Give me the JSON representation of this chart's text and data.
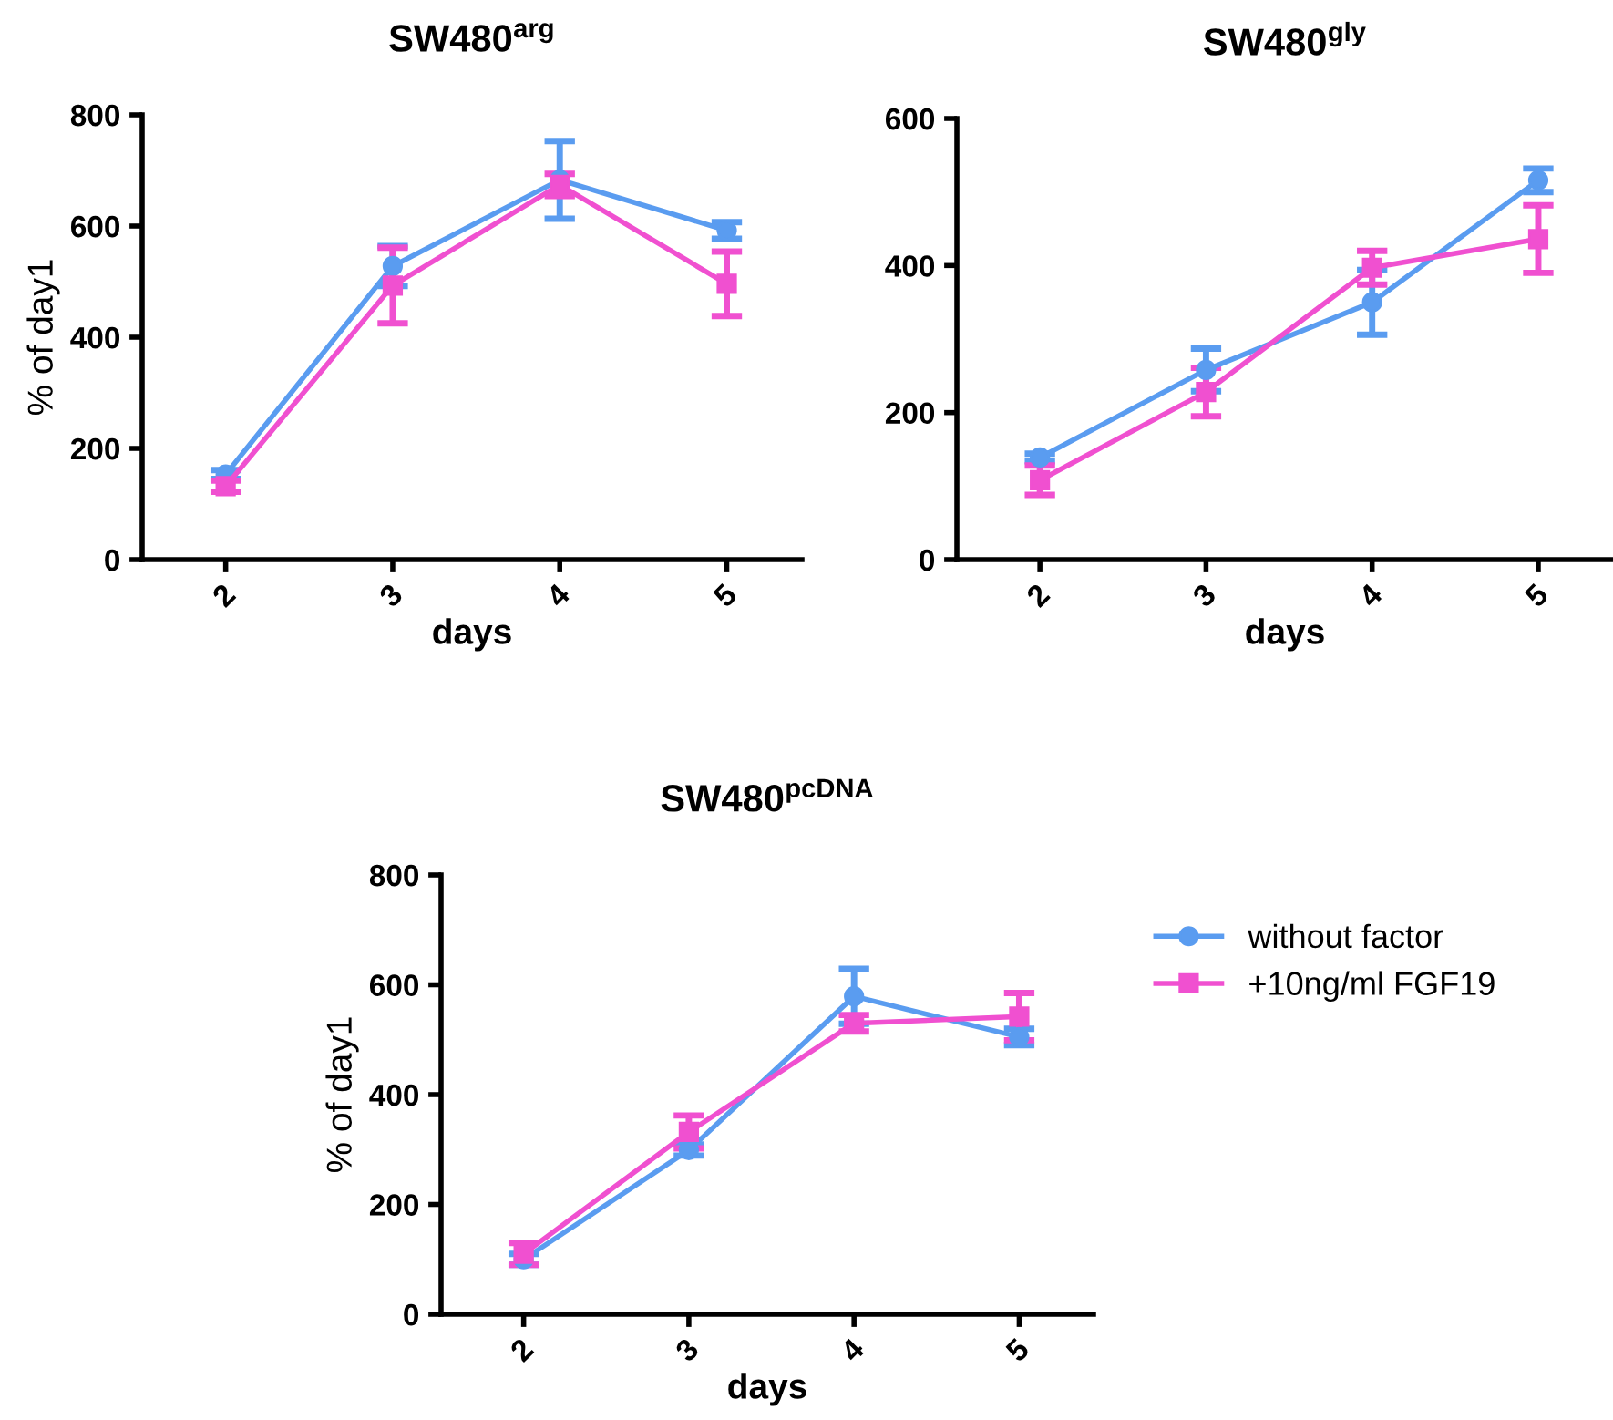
{
  "chart_data": [
    {
      "type": "line",
      "title": "SW480$^{arg}$",
      "xlabel": "days",
      "ylabel": "% of day1",
      "categories": [
        "2",
        "3",
        "4",
        "5"
      ],
      "ylim": [
        0,
        800
      ],
      "yticks": [
        0,
        200,
        400,
        600,
        800
      ],
      "grid": false,
      "legend": false,
      "series": [
        {
          "color": "#5a9cf0",
          "marker": "circle",
          "values": [
            153,
            528,
            683,
            592
          ],
          "errors": [
            8,
            36,
            70,
            15
          ]
        },
        {
          "color": "#f050d0",
          "marker": "square",
          "values": [
            132,
            493,
            674,
            496
          ],
          "errors": [
            10,
            68,
            20,
            58
          ]
        }
      ]
    },
    {
      "type": "line",
      "title": "SW480$^{gly}$",
      "xlabel": "days",
      "categories": [
        "2",
        "3",
        "4",
        "5"
      ],
      "ylim": [
        0,
        600
      ],
      "yticks": [
        0,
        200,
        400,
        600
      ],
      "grid": false,
      "legend": false,
      "series": [
        {
          "color": "#5a9cf0",
          "marker": "circle",
          "values": [
            139,
            258,
            350,
            516
          ],
          "errors": [
            5,
            29,
            44,
            16
          ]
        },
        {
          "color": "#f050d0",
          "marker": "square",
          "values": [
            108,
            228,
            397,
            436
          ],
          "errors": [
            20,
            33,
            23,
            46
          ]
        }
      ]
    },
    {
      "type": "line",
      "title": "SW480$^{pcDNA}$",
      "xlabel": "days",
      "ylabel": "% of day1",
      "categories": [
        "2",
        "3",
        "4",
        "5"
      ],
      "ylim": [
        0,
        800
      ],
      "yticks": [
        0,
        200,
        400,
        600,
        800
      ],
      "grid": false,
      "legend": "right",
      "series": [
        {
          "name": "without factor",
          "color": "#5a9cf0",
          "marker": "circle",
          "values": [
            100,
            299,
            579,
            505
          ],
          "errors": [
            10,
            10,
            50,
            15
          ]
        },
        {
          "name": "+10ng/ml FGF19",
          "color": "#f050d0",
          "marker": "square",
          "values": [
            110,
            332,
            530,
            542
          ],
          "errors": [
            20,
            30,
            15,
            43
          ]
        }
      ]
    }
  ]
}
